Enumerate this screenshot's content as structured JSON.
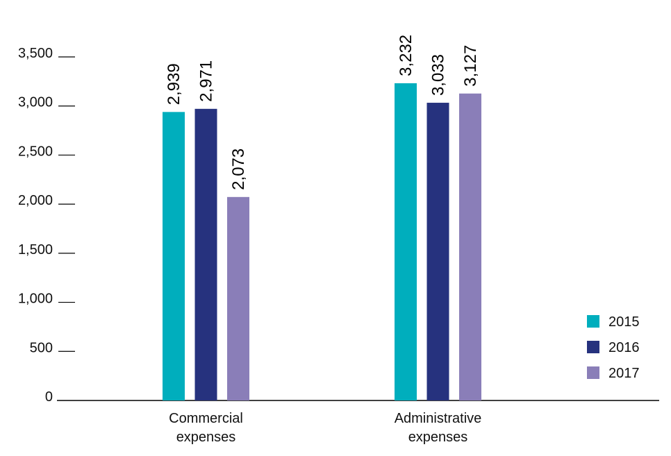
{
  "chart_data": {
    "type": "bar",
    "title": "",
    "xlabel": "",
    "ylabel": "",
    "ylim": [
      0,
      3500
    ],
    "yticks": [
      0,
      500,
      1000,
      1500,
      2000,
      2500,
      3000,
      3500
    ],
    "ytick_labels": [
      "0",
      "500",
      "1,000",
      "1,500",
      "2,000",
      "2,500",
      "3,000",
      "3,500"
    ],
    "categories": [
      [
        "Commercial",
        "expenses"
      ],
      [
        "Administrative",
        "expenses"
      ]
    ],
    "series": [
      {
        "name": "2015",
        "color": "#00AEBD",
        "values": [
          2939,
          3232
        ],
        "labels": [
          "2,939",
          "3,232"
        ]
      },
      {
        "name": "2016",
        "color": "#26327E",
        "values": [
          2971,
          3033
        ],
        "labels": [
          "2,971",
          "3,033"
        ]
      },
      {
        "name": "2017",
        "color": "#8A7EB8",
        "values": [
          2073,
          3127
        ],
        "labels": [
          "2,073",
          "3,127"
        ]
      }
    ],
    "grid": false,
    "legend": {
      "position": "bottom-right",
      "entries": [
        "2015",
        "2016",
        "2017"
      ]
    },
    "data_labels": {
      "orientation": "vertical"
    }
  }
}
